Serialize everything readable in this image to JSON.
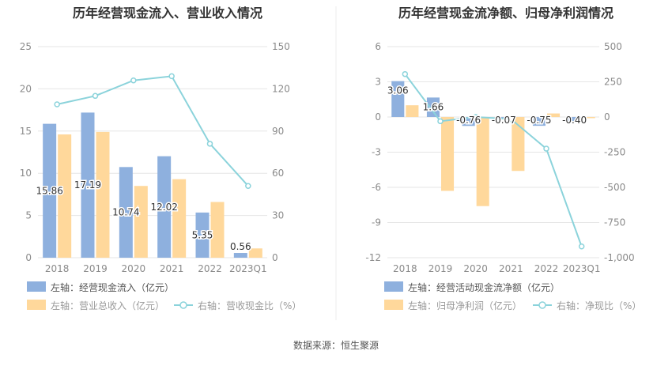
{
  "colors": {
    "bar_blue": "#8eb0de",
    "bar_orange": "#ffd89b",
    "line_teal": "#8bd3db",
    "grid": "#e6e6e6",
    "axis_text": "#8a8a8a",
    "title_text": "#333333"
  },
  "source_text": "数据来源：恒生聚源",
  "chart_data": [
    {
      "type": "bar",
      "title": "历年经营现金流入、营业收入情况",
      "categories": [
        "2018",
        "2019",
        "2020",
        "2021",
        "2022",
        "2023Q1"
      ],
      "y_left": {
        "min": 0,
        "max": 25,
        "ticks": [
          0,
          5,
          10,
          15,
          20,
          25
        ]
      },
      "y_right": {
        "min": 0,
        "max": 150,
        "ticks": [
          0,
          30,
          60,
          90,
          120,
          150
        ]
      },
      "series": [
        {
          "name": "左轴：经营现金流入（亿元）",
          "kind": "bar",
          "axis": "left",
          "values": [
            15.86,
            17.19,
            10.74,
            12.02,
            5.35,
            0.56
          ],
          "labels": [
            "15.86",
            "17.19",
            "10.74",
            "12.02",
            "5.35",
            "0.56"
          ]
        },
        {
          "name": "左轴：营业总收入（亿元）",
          "kind": "bar",
          "axis": "left",
          "values": [
            14.6,
            14.9,
            8.5,
            9.3,
            6.6,
            1.1
          ]
        },
        {
          "name": "右轴：营收现金比（%）",
          "kind": "line",
          "axis": "right",
          "values": [
            109,
            115,
            126,
            129,
            81,
            51
          ]
        }
      ],
      "legend_placement": "bottom",
      "grid": true
    },
    {
      "type": "bar",
      "title": "历年经营现金流净额、归母净利润情况",
      "categories": [
        "2018",
        "2019",
        "2020",
        "2021",
        "2022",
        "2023Q1"
      ],
      "y_left": {
        "min": -12,
        "max": 6,
        "ticks": [
          -12,
          -9,
          -6,
          -3,
          0,
          3,
          6
        ]
      },
      "y_right": {
        "min": -1000,
        "max": 500,
        "ticks": [
          -1000,
          -750,
          -500,
          -250,
          0,
          250,
          500
        ],
        "tick_labels": [
          "-1,000",
          "-750",
          "-500",
          "-250",
          "0",
          "250",
          "500"
        ]
      },
      "series": [
        {
          "name": "左轴：经营活动现金流净额（亿元）",
          "kind": "bar",
          "axis": "left",
          "values": [
            3.06,
            1.66,
            -0.76,
            -0.07,
            -0.75,
            -0.4
          ],
          "labels": [
            "3.06",
            "1.66",
            "-0.76",
            "-0.07",
            "-0.75",
            "-0.40"
          ]
        },
        {
          "name": "左轴：归母净利润（亿元）",
          "kind": "bar",
          "axis": "left",
          "values": [
            1.0,
            -6.3,
            -7.6,
            -4.6,
            0.3,
            -0.1
          ]
        },
        {
          "name": "右轴：净现比（%）",
          "kind": "line",
          "axis": "right",
          "values": [
            305,
            -30,
            0,
            -15,
            -225,
            -920
          ]
        }
      ],
      "legend_placement": "bottom",
      "grid": true
    }
  ]
}
